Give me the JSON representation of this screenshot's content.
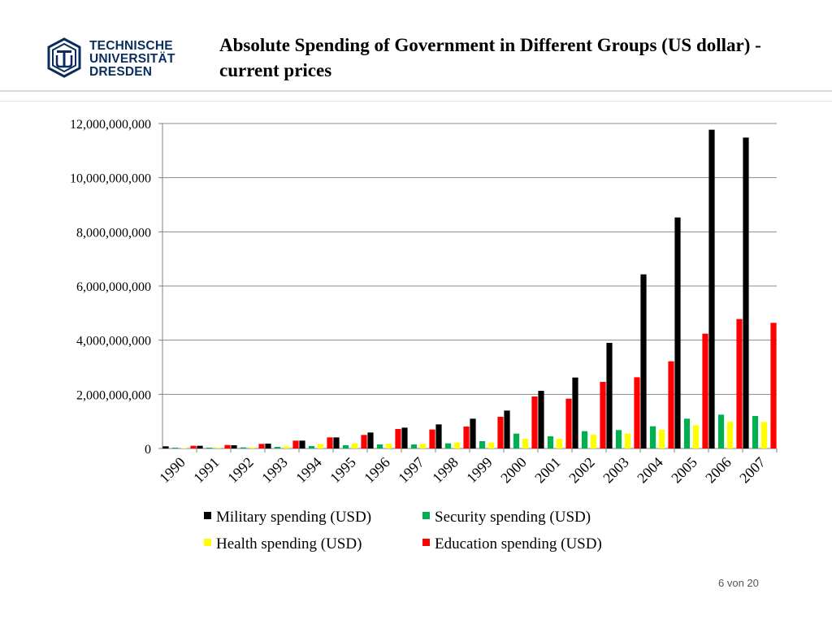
{
  "logo": {
    "name": "tu-dresden-logo",
    "lines": [
      "TECHNISCHE",
      "UNIVERSITÄT",
      "DRESDEN"
    ],
    "color": "#0a2d5e"
  },
  "slide": {
    "title": "Absolute Spending of Government in Different Groups (US dollar) - current prices",
    "page_number": "6 von 20"
  },
  "chart_data": {
    "type": "bar",
    "title": "",
    "xlabel": "",
    "ylabel": "",
    "ylim": [
      0,
      12000000000
    ],
    "yticks": [
      0,
      2000000000,
      4000000000,
      6000000000,
      8000000000,
      10000000000,
      12000000000
    ],
    "ytick_labels": [
      "0",
      "2,000,000,000",
      "4,000,000,000",
      "6,000,000,000",
      "8,000,000,000",
      "10,000,000,000",
      "12,000,000,000"
    ],
    "grid": true,
    "legend_position": "bottom",
    "categories": [
      "1990",
      "1991",
      "1992",
      "1993",
      "1994",
      "1995",
      "1996",
      "1997",
      "1998",
      "1999",
      "2000",
      "2001",
      "2002",
      "2003",
      "2004",
      "2005",
      "2006",
      "2007"
    ],
    "series": [
      {
        "name": "Military spending (USD)",
        "color": "#000000",
        "values": [
          80000000,
          100000000,
          120000000,
          180000000,
          290000000,
          410000000,
          590000000,
          770000000,
          890000000,
          1100000000,
          1400000000,
          2130000000,
          2620000000,
          3900000000,
          6430000000,
          8530000000,
          11770000000,
          11480000000
        ]
      },
      {
        "name": "Security spending (USD)",
        "color": "#00b050",
        "values": [
          30000000,
          30000000,
          40000000,
          60000000,
          90000000,
          120000000,
          150000000,
          150000000,
          190000000,
          270000000,
          550000000,
          450000000,
          640000000,
          680000000,
          820000000,
          1100000000,
          1250000000,
          1200000000
        ]
      },
      {
        "name": "Health spending (USD)",
        "color": "#ffff00",
        "values": [
          20000000,
          30000000,
          40000000,
          80000000,
          170000000,
          190000000,
          180000000,
          170000000,
          220000000,
          220000000,
          360000000,
          360000000,
          510000000,
          550000000,
          690000000,
          860000000,
          990000000,
          980000000
        ]
      },
      {
        "name": "Education spending (USD)",
        "color": "#ff0000",
        "values": [
          100000000,
          130000000,
          170000000,
          290000000,
          410000000,
          500000000,
          720000000,
          700000000,
          810000000,
          1170000000,
          1920000000,
          1840000000,
          2460000000,
          2630000000,
          3220000000,
          4240000000,
          4780000000,
          4640000000
        ]
      }
    ]
  }
}
